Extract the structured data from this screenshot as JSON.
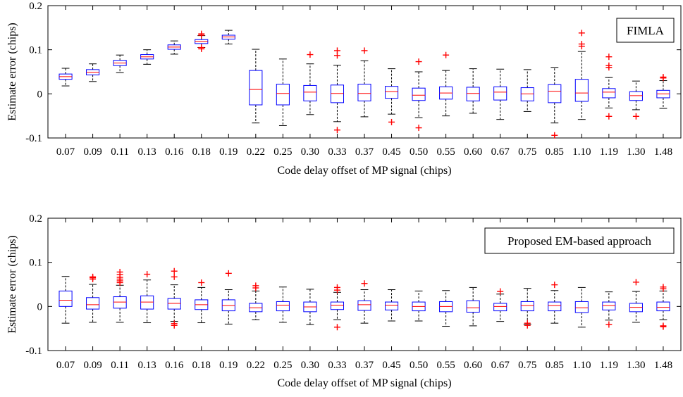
{
  "chart_data": [
    {
      "type": "box",
      "legend_label": "FIMLA",
      "xlabel": "Code delay offset of MP signal (chips)",
      "ylabel": "Estimate error (chips)",
      "ylim": [
        -0.1,
        0.2
      ],
      "yticks": [
        "-0.1",
        "0",
        "0.1",
        "0.2"
      ],
      "categories": [
        "0.07",
        "0.09",
        "0.11",
        "0.13",
        "0.16",
        "0.18",
        "0.19",
        "0.22",
        "0.25",
        "0.30",
        "0.33",
        "0.37",
        "0.45",
        "0.50",
        "0.55",
        "0.60",
        "0.67",
        "0.75",
        "0.85",
        "1.10",
        "1.19",
        "1.30",
        "1.48"
      ],
      "boxes": [
        {
          "wlo": 0.018,
          "q1": 0.033,
          "med": 0.039,
          "q3": 0.045,
          "whi": 0.058,
          "outliers": []
        },
        {
          "wlo": 0.028,
          "q1": 0.043,
          "med": 0.049,
          "q3": 0.055,
          "whi": 0.068,
          "outliers": []
        },
        {
          "wlo": 0.048,
          "q1": 0.064,
          "med": 0.07,
          "q3": 0.076,
          "whi": 0.088,
          "outliers": []
        },
        {
          "wlo": 0.067,
          "q1": 0.079,
          "med": 0.084,
          "q3": 0.089,
          "whi": 0.1,
          "outliers": []
        },
        {
          "wlo": 0.09,
          "q1": 0.101,
          "med": 0.106,
          "q3": 0.111,
          "whi": 0.12,
          "outliers": []
        },
        {
          "wlo": 0.105,
          "q1": 0.114,
          "med": 0.119,
          "q3": 0.123,
          "whi": 0.132,
          "outliers": [
            0.102,
            0.105,
            0.133,
            0.136
          ]
        },
        {
          "wlo": 0.113,
          "q1": 0.124,
          "med": 0.129,
          "q3": 0.133,
          "whi": 0.144,
          "outliers": []
        },
        {
          "wlo": -0.066,
          "q1": -0.025,
          "med": 0.01,
          "q3": 0.053,
          "whi": 0.101,
          "outliers": []
        },
        {
          "wlo": -0.072,
          "q1": -0.025,
          "med": 0.001,
          "q3": 0.022,
          "whi": 0.079,
          "outliers": []
        },
        {
          "wlo": -0.047,
          "q1": -0.016,
          "med": 0.004,
          "q3": 0.019,
          "whi": 0.068,
          "outliers": [
            0.089
          ]
        },
        {
          "wlo": -0.063,
          "q1": -0.02,
          "med": 0.001,
          "q3": 0.02,
          "whi": 0.065,
          "outliers": [
            -0.082,
            0.087,
            0.098
          ]
        },
        {
          "wlo": -0.052,
          "q1": -0.016,
          "med": 0.001,
          "q3": 0.022,
          "whi": 0.075,
          "outliers": [
            0.098
          ]
        },
        {
          "wlo": -0.046,
          "q1": -0.01,
          "med": 0.005,
          "q3": 0.017,
          "whi": 0.057,
          "outliers": [
            -0.064
          ]
        },
        {
          "wlo": -0.054,
          "q1": -0.015,
          "med": -0.003,
          "q3": 0.013,
          "whi": 0.05,
          "outliers": [
            -0.077,
            0.073
          ]
        },
        {
          "wlo": -0.05,
          "q1": -0.012,
          "med": 0.002,
          "q3": 0.016,
          "whi": 0.053,
          "outliers": [
            0.088
          ]
        },
        {
          "wlo": -0.044,
          "q1": -0.016,
          "med": 0.001,
          "q3": 0.015,
          "whi": 0.057,
          "outliers": []
        },
        {
          "wlo": -0.058,
          "q1": -0.014,
          "med": 0.004,
          "q3": 0.016,
          "whi": 0.056,
          "outliers": []
        },
        {
          "wlo": -0.04,
          "q1": -0.016,
          "med": 0.0,
          "q3": 0.014,
          "whi": 0.055,
          "outliers": []
        },
        {
          "wlo": -0.066,
          "q1": -0.02,
          "med": 0.006,
          "q3": 0.021,
          "whi": 0.06,
          "outliers": [
            -0.094
          ]
        },
        {
          "wlo": -0.058,
          "q1": -0.017,
          "med": 0.002,
          "q3": 0.033,
          "whi": 0.096,
          "outliers": [
            0.108,
            0.113,
            0.138
          ]
        },
        {
          "wlo": -0.032,
          "q1": -0.009,
          "med": 0.004,
          "q3": 0.012,
          "whi": 0.037,
          "outliers": [
            -0.051,
            0.06,
            0.064,
            0.084
          ]
        },
        {
          "wlo": -0.036,
          "q1": -0.015,
          "med": -0.004,
          "q3": 0.005,
          "whi": 0.029,
          "outliers": [
            -0.051
          ]
        },
        {
          "wlo": -0.033,
          "q1": -0.009,
          "med": 0.0,
          "q3": 0.008,
          "whi": 0.03,
          "outliers": [
            0.036,
            0.038
          ]
        }
      ]
    },
    {
      "type": "box",
      "legend_label": "Proposed EM-based approach",
      "xlabel": "Code delay offset of MP signal (chips)",
      "ylabel": "Estimate error (chips)",
      "ylim": [
        -0.1,
        0.2
      ],
      "yticks": [
        "-0.1",
        "0",
        "0.1",
        "0.2"
      ],
      "categories": [
        "0.07",
        "0.09",
        "0.11",
        "0.13",
        "0.16",
        "0.18",
        "0.19",
        "0.22",
        "0.25",
        "0.30",
        "0.33",
        "0.37",
        "0.45",
        "0.50",
        "0.55",
        "0.60",
        "0.67",
        "0.75",
        "0.85",
        "1.10",
        "1.19",
        "1.30",
        "1.48"
      ],
      "boxes": [
        {
          "wlo": -0.038,
          "q1": 0.0,
          "med": 0.014,
          "q3": 0.035,
          "whi": 0.068,
          "outliers": []
        },
        {
          "wlo": -0.036,
          "q1": -0.006,
          "med": 0.004,
          "q3": 0.02,
          "whi": 0.05,
          "outliers": [
            0.062,
            0.065,
            0.067
          ]
        },
        {
          "wlo": -0.036,
          "q1": -0.004,
          "med": 0.01,
          "q3": 0.022,
          "whi": 0.048,
          "outliers": [
            0.054,
            0.058,
            0.062,
            0.066,
            0.072,
            0.078
          ]
        },
        {
          "wlo": -0.037,
          "q1": -0.006,
          "med": 0.01,
          "q3": 0.024,
          "whi": 0.06,
          "outliers": [
            0.073
          ]
        },
        {
          "wlo": -0.034,
          "q1": -0.006,
          "med": 0.007,
          "q3": 0.018,
          "whi": 0.049,
          "outliers": [
            -0.043,
            -0.039,
            0.067,
            0.08
          ]
        },
        {
          "wlo": -0.037,
          "q1": -0.007,
          "med": 0.004,
          "q3": 0.015,
          "whi": 0.043,
          "outliers": [
            0.054
          ]
        },
        {
          "wlo": -0.04,
          "q1": -0.01,
          "med": 0.002,
          "q3": 0.015,
          "whi": 0.038,
          "outliers": [
            0.075
          ]
        },
        {
          "wlo": -0.03,
          "q1": -0.012,
          "med": -0.003,
          "q3": 0.007,
          "whi": 0.035,
          "outliers": [
            0.042,
            0.047
          ]
        },
        {
          "wlo": -0.036,
          "q1": -0.01,
          "med": 0.003,
          "q3": 0.011,
          "whi": 0.044,
          "outliers": []
        },
        {
          "wlo": -0.041,
          "q1": -0.012,
          "med": -0.001,
          "q3": 0.01,
          "whi": 0.039,
          "outliers": []
        },
        {
          "wlo": -0.03,
          "q1": -0.007,
          "med": 0.003,
          "q3": 0.01,
          "whi": 0.032,
          "outliers": [
            -0.047,
            0.037,
            0.043
          ]
        },
        {
          "wlo": -0.038,
          "q1": -0.009,
          "med": 0.004,
          "q3": 0.013,
          "whi": 0.038,
          "outliers": [
            0.052
          ]
        },
        {
          "wlo": -0.033,
          "q1": -0.008,
          "med": 0.003,
          "q3": 0.01,
          "whi": 0.038,
          "outliers": []
        },
        {
          "wlo": -0.033,
          "q1": -0.01,
          "med": 0.0,
          "q3": 0.01,
          "whi": 0.035,
          "outliers": []
        },
        {
          "wlo": -0.045,
          "q1": -0.012,
          "med": 0.0,
          "q3": 0.011,
          "whi": 0.036,
          "outliers": []
        },
        {
          "wlo": -0.044,
          "q1": -0.013,
          "med": -0.003,
          "q3": 0.013,
          "whi": 0.043,
          "outliers": []
        },
        {
          "wlo": -0.034,
          "q1": -0.01,
          "med": 0.0,
          "q3": 0.007,
          "whi": 0.028,
          "outliers": [
            0.034
          ]
        },
        {
          "wlo": -0.04,
          "q1": -0.01,
          "med": 0.002,
          "q3": 0.011,
          "whi": 0.041,
          "outliers": [
            -0.043,
            -0.038
          ]
        },
        {
          "wlo": -0.038,
          "q1": -0.01,
          "med": 0.002,
          "q3": 0.01,
          "whi": 0.036,
          "outliers": [
            0.049
          ]
        },
        {
          "wlo": -0.047,
          "q1": -0.014,
          "med": -0.003,
          "q3": 0.011,
          "whi": 0.043,
          "outliers": []
        },
        {
          "wlo": -0.031,
          "q1": -0.008,
          "med": 0.002,
          "q3": 0.01,
          "whi": 0.033,
          "outliers": [
            -0.041
          ]
        },
        {
          "wlo": -0.036,
          "q1": -0.012,
          "med": -0.002,
          "q3": 0.007,
          "whi": 0.034,
          "outliers": [
            0.055
          ]
        },
        {
          "wlo": -0.03,
          "q1": -0.01,
          "med": -0.002,
          "q3": 0.01,
          "whi": 0.035,
          "outliers": [
            -0.046,
            -0.044,
            0.04,
            0.044
          ]
        }
      ]
    }
  ],
  "colors": {
    "box": "#0000ff",
    "median": "#ff0000",
    "outlier": "#ff0000",
    "whisker": "#000000",
    "axis": "#000000"
  },
  "icons": {
    "outlier_marker": "plus-marker"
  }
}
